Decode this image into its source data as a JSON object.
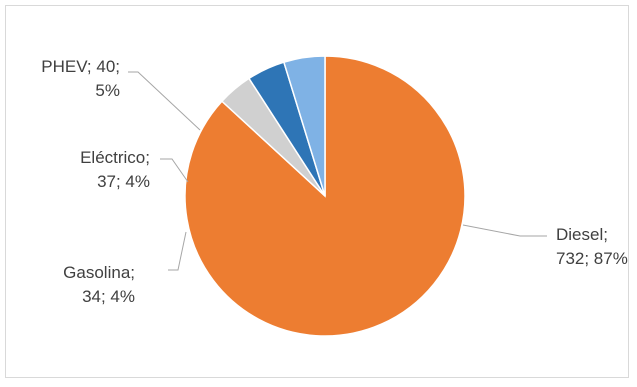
{
  "chart_data": {
    "type": "pie",
    "title": "",
    "slices": [
      {
        "label": "Diesel",
        "value": 732,
        "percent": "87%",
        "color": "#ed7d31",
        "label_lines": [
          "Diesel;",
          "732; 87%"
        ]
      },
      {
        "label": "Gasolina",
        "value": 34,
        "percent": "4%",
        "color": "#d0d0d0",
        "label_lines": [
          "Gasolina;",
          "34; 4%"
        ]
      },
      {
        "label": "Eléctrico",
        "value": 37,
        "percent": "4%",
        "color": "#2e75b6",
        "label_lines": [
          "Eléctrico;",
          "37; 4%"
        ]
      },
      {
        "label": "PHEV",
        "value": 40,
        "percent": "5%",
        "color": "#7fb2e5",
        "label_lines": [
          "PHEV; 40;",
          "5%"
        ]
      }
    ],
    "legend": "none",
    "data_labels": "outside with leader lines"
  }
}
